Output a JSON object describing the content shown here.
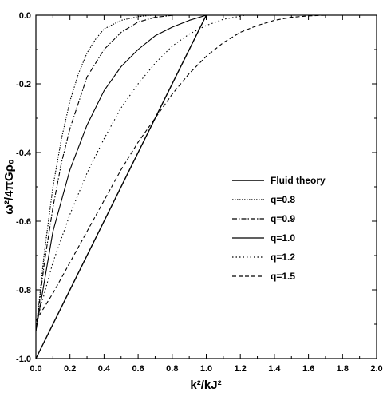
{
  "chart_data": {
    "type": "line",
    "title": "",
    "xlabel": "k²/kJ²",
    "ylabel": "ω²/4πGρ₀",
    "xlim": [
      0.0,
      2.0
    ],
    "ylim": [
      -1.0,
      0.0
    ],
    "xticks": [
      "0.0",
      "0.2",
      "0.4",
      "0.6",
      "0.8",
      "1.0",
      "1.2",
      "1.4",
      "1.6",
      "1.8",
      "2.0"
    ],
    "yticks": [
      "0.0",
      "-0.2",
      "-0.4",
      "-0.6",
      "-0.8",
      "-1.0"
    ],
    "grid": false,
    "legend_position": "center-right",
    "series": [
      {
        "name": "Fluid theory",
        "dash": "",
        "width": 1.4,
        "x": [
          0.0,
          1.0
        ],
        "y": [
          -1.0,
          0.0
        ]
      },
      {
        "name": "q=0.8",
        "dash": "1.5,1.5",
        "width": 1.1,
        "x": [
          0.0,
          0.05,
          0.1,
          0.15,
          0.2,
          0.25,
          0.3,
          0.35,
          0.4,
          0.5,
          0.6,
          0.68
        ],
        "y": [
          -0.92,
          -0.69,
          -0.5,
          -0.36,
          -0.25,
          -0.17,
          -0.11,
          -0.07,
          -0.04,
          -0.015,
          -0.004,
          0.0
        ]
      },
      {
        "name": "q=0.9",
        "dash": "6,2,1.5,2",
        "width": 1.1,
        "x": [
          0.0,
          0.05,
          0.1,
          0.15,
          0.2,
          0.3,
          0.4,
          0.5,
          0.6,
          0.7,
          0.81
        ],
        "y": [
          -0.92,
          -0.72,
          -0.56,
          -0.43,
          -0.33,
          -0.18,
          -0.1,
          -0.05,
          -0.02,
          -0.006,
          0.0
        ]
      },
      {
        "name": "q=1.0",
        "dash": "",
        "width": 1.1,
        "x": [
          0.0,
          0.1,
          0.2,
          0.3,
          0.4,
          0.5,
          0.6,
          0.7,
          0.8,
          0.9,
          1.0
        ],
        "y": [
          -0.92,
          -0.63,
          -0.45,
          -0.32,
          -0.22,
          -0.15,
          -0.1,
          -0.06,
          -0.035,
          -0.015,
          0.0
        ]
      },
      {
        "name": "q=1.2",
        "dash": "1.5,3",
        "width": 1.1,
        "x": [
          0.0,
          0.1,
          0.2,
          0.3,
          0.4,
          0.5,
          0.6,
          0.7,
          0.8,
          0.9,
          1.0,
          1.1,
          1.23
        ],
        "y": [
          -0.9,
          -0.72,
          -0.58,
          -0.46,
          -0.36,
          -0.27,
          -0.2,
          -0.14,
          -0.09,
          -0.055,
          -0.03,
          -0.012,
          0.0
        ]
      },
      {
        "name": "q=1.5",
        "dash": "5,3",
        "width": 1.1,
        "x": [
          0.0,
          0.1,
          0.2,
          0.3,
          0.4,
          0.5,
          0.6,
          0.7,
          0.8,
          0.9,
          1.0,
          1.1,
          1.2,
          1.3,
          1.4,
          1.5,
          1.6,
          1.7
        ],
        "y": [
          -0.89,
          -0.81,
          -0.72,
          -0.63,
          -0.54,
          -0.45,
          -0.37,
          -0.3,
          -0.23,
          -0.17,
          -0.12,
          -0.08,
          -0.05,
          -0.03,
          -0.015,
          -0.006,
          -0.002,
          0.0
        ]
      }
    ]
  }
}
